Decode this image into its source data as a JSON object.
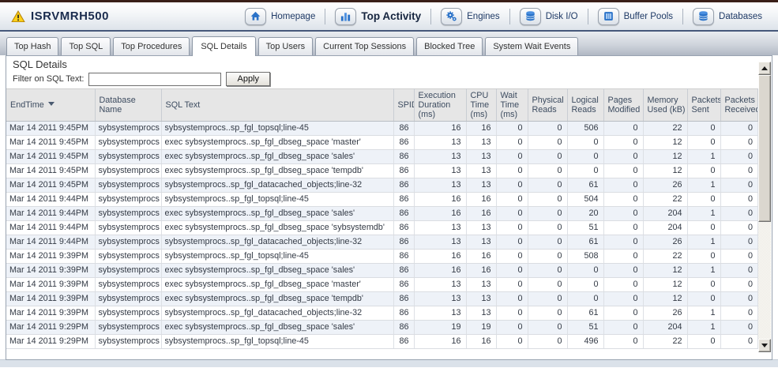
{
  "header": {
    "title": "ISRVMRH500",
    "nav": [
      {
        "label": "Homepage",
        "icon": "home-icon",
        "active": false
      },
      {
        "label": "Top Activity",
        "icon": "bar-chart-icon",
        "active": true
      },
      {
        "label": "Engines",
        "icon": "gears-icon",
        "active": false
      },
      {
        "label": "Disk I/O",
        "icon": "disk-cylinder-icon",
        "active": false
      },
      {
        "label": "Buffer Pools",
        "icon": "buffer-pools-icon",
        "active": false
      },
      {
        "label": "Databases",
        "icon": "databases-icon",
        "active": false
      }
    ]
  },
  "tabs": [
    {
      "label": "Top Hash",
      "active": false
    },
    {
      "label": "Top SQL",
      "active": false
    },
    {
      "label": "Top Procedures",
      "active": false
    },
    {
      "label": "SQL Details",
      "active": true
    },
    {
      "label": "Top Users",
      "active": false
    },
    {
      "label": "Current Top Sessions",
      "active": false
    },
    {
      "label": "Blocked Tree",
      "active": false
    },
    {
      "label": "System Wait Events",
      "active": false
    }
  ],
  "section": {
    "title": "SQL Details",
    "filter_label": "Filter on SQL Text:",
    "filter_value": "",
    "apply_label": "Apply"
  },
  "table": {
    "columns": [
      {
        "label": "EndTime",
        "sorted": "desc"
      },
      {
        "label": "Database Name"
      },
      {
        "label": "SQL Text"
      },
      {
        "label": "SPID"
      },
      {
        "label": "Execution Duration (ms)"
      },
      {
        "label": "CPU Time (ms)"
      },
      {
        "label": "Wait Time (ms)"
      },
      {
        "label": "Physical Reads"
      },
      {
        "label": "Logical Reads"
      },
      {
        "label": "Pages Modified"
      },
      {
        "label": "Memory Used (kB)"
      },
      {
        "label": "Packets Sent"
      },
      {
        "label": "Packets Received"
      }
    ],
    "rows": [
      [
        "Mar 14 2011 9:45PM",
        "sybsystemprocs",
        "sybsystemprocs..sp_fgl_topsql;line-45",
        "86",
        "16",
        "16",
        "0",
        "0",
        "506",
        "0",
        "22",
        "0",
        "0"
      ],
      [
        "Mar 14 2011 9:45PM",
        "sybsystemprocs",
        "exec sybsystemprocs..sp_fgl_dbseg_space 'master'",
        "86",
        "13",
        "13",
        "0",
        "0",
        "0",
        "0",
        "12",
        "0",
        "0"
      ],
      [
        "Mar 14 2011 9:45PM",
        "sybsystemprocs",
        "exec sybsystemprocs..sp_fgl_dbseg_space 'sales'",
        "86",
        "13",
        "13",
        "0",
        "0",
        "0",
        "0",
        "12",
        "1",
        "0"
      ],
      [
        "Mar 14 2011 9:45PM",
        "sybsystemprocs",
        "exec sybsystemprocs..sp_fgl_dbseg_space 'tempdb'",
        "86",
        "13",
        "13",
        "0",
        "0",
        "0",
        "0",
        "12",
        "0",
        "0"
      ],
      [
        "Mar 14 2011 9:45PM",
        "sybsystemprocs",
        "sybsystemprocs..sp_fgl_datacached_objects;line-32",
        "86",
        "13",
        "13",
        "0",
        "0",
        "61",
        "0",
        "26",
        "1",
        "0"
      ],
      [
        "Mar 14 2011 9:44PM",
        "sybsystemprocs",
        "sybsystemprocs..sp_fgl_topsql;line-45",
        "86",
        "16",
        "16",
        "0",
        "0",
        "504",
        "0",
        "22",
        "0",
        "0"
      ],
      [
        "Mar 14 2011 9:44PM",
        "sybsystemprocs",
        "exec sybsystemprocs..sp_fgl_dbseg_space 'sales'",
        "86",
        "16",
        "16",
        "0",
        "0",
        "20",
        "0",
        "204",
        "1",
        "0"
      ],
      [
        "Mar 14 2011 9:44PM",
        "sybsystemprocs",
        "exec sybsystemprocs..sp_fgl_dbseg_space 'sybsystemdb'",
        "86",
        "13",
        "13",
        "0",
        "0",
        "51",
        "0",
        "204",
        "0",
        "0"
      ],
      [
        "Mar 14 2011 9:44PM",
        "sybsystemprocs",
        "sybsystemprocs..sp_fgl_datacached_objects;line-32",
        "86",
        "13",
        "13",
        "0",
        "0",
        "61",
        "0",
        "26",
        "1",
        "0"
      ],
      [
        "Mar 14 2011 9:39PM",
        "sybsystemprocs",
        "sybsystemprocs..sp_fgl_topsql;line-45",
        "86",
        "16",
        "16",
        "0",
        "0",
        "508",
        "0",
        "22",
        "0",
        "0"
      ],
      [
        "Mar 14 2011 9:39PM",
        "sybsystemprocs",
        "exec sybsystemprocs..sp_fgl_dbseg_space 'sales'",
        "86",
        "16",
        "16",
        "0",
        "0",
        "0",
        "0",
        "12",
        "1",
        "0"
      ],
      [
        "Mar 14 2011 9:39PM",
        "sybsystemprocs",
        "exec sybsystemprocs..sp_fgl_dbseg_space 'master'",
        "86",
        "13",
        "13",
        "0",
        "0",
        "0",
        "0",
        "12",
        "0",
        "0"
      ],
      [
        "Mar 14 2011 9:39PM",
        "sybsystemprocs",
        "exec sybsystemprocs..sp_fgl_dbseg_space 'tempdb'",
        "86",
        "13",
        "13",
        "0",
        "0",
        "0",
        "0",
        "12",
        "0",
        "0"
      ],
      [
        "Mar 14 2011 9:39PM",
        "sybsystemprocs",
        "sybsystemprocs..sp_fgl_datacached_objects;line-32",
        "86",
        "13",
        "13",
        "0",
        "0",
        "61",
        "0",
        "26",
        "1",
        "0"
      ],
      [
        "Mar 14 2011 9:29PM",
        "sybsystemprocs",
        "exec sybsystemprocs..sp_fgl_dbseg_space 'sales'",
        "86",
        "19",
        "19",
        "0",
        "0",
        "51",
        "0",
        "204",
        "1",
        "0"
      ],
      [
        "Mar 14 2011 9:29PM",
        "sybsystemprocs",
        "sybsystemprocs..sp_fgl_topsql;line-45",
        "86",
        "16",
        "16",
        "0",
        "0",
        "496",
        "0",
        "22",
        "0",
        "0"
      ]
    ]
  },
  "icons": [
    "warning-icon",
    "home-icon",
    "bar-chart-icon",
    "gears-icon",
    "disk-cylinder-icon",
    "buffer-pools-icon",
    "databases-icon",
    "sort-desc-icon",
    "scroll-up-icon",
    "scroll-down-icon"
  ],
  "colors": {
    "accent_blue": "#2a72c8",
    "header_text": "#1b2c4e",
    "top_stripe": "#3a1f18",
    "tabbar_dark": "#b1b8c4",
    "row_alt": "#eef2f8",
    "grid_line": "#dadde2",
    "table_header_bg": "#e6e6e6"
  }
}
